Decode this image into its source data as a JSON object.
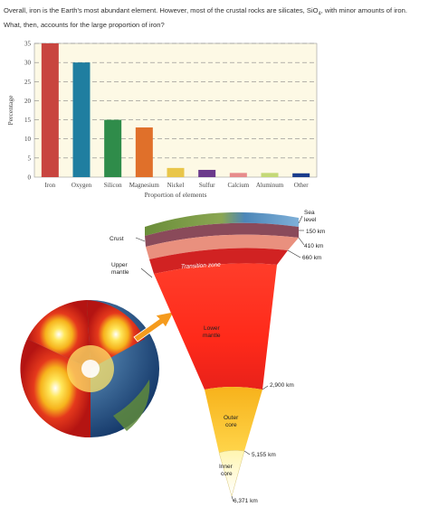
{
  "question": {
    "line1_before": "Overall, iron is the Earth's most abundant element. However, most of the crustal rocks are silicates, SiO",
    "line1_sub": "4",
    "line1_after": ", with minor amounts of iron.",
    "line2": "What, then, accounts for the large proportion of iron?"
  },
  "chart_data": {
    "type": "bar",
    "title": "",
    "xlabel": "Proportion of elements",
    "ylabel": "Percentage",
    "ylim": [
      0,
      35
    ],
    "yticks": [
      0,
      5,
      10,
      15,
      20,
      25,
      30,
      35
    ],
    "categories": [
      "Iron",
      "Oxygen",
      "Silicon",
      "Magnesium",
      "Nickel",
      "Sulfur",
      "Calcium",
      "Aluminum",
      "Other"
    ],
    "values": [
      35,
      30,
      15,
      13,
      2.4,
      1.9,
      1.1,
      1.1,
      1.0
    ],
    "colors": [
      "#c8453f",
      "#1f7ea0",
      "#2f8c4a",
      "#e0702a",
      "#e9c64a",
      "#6b3a8c",
      "#e78c8c",
      "#c4d977",
      "#1a3c8c"
    ],
    "grid": true,
    "plot_background": "#fdf9e5"
  },
  "earth_labels": {
    "sea_level": [
      "Sea",
      "level"
    ],
    "d150": "150 km",
    "d410": "410 km",
    "d660": "660 km",
    "crust": "Crust",
    "upper_mantle": [
      "Upper",
      "mantle"
    ],
    "transition_zone": "Transition zone",
    "lower_mantle": [
      "Lower",
      "mantle"
    ],
    "d2900": "2,900 km",
    "outer_core": [
      "Outer",
      "core"
    ],
    "d5155": "5,155 km",
    "inner_core": [
      "Inner",
      "core"
    ],
    "d6371": "6,371 km"
  }
}
